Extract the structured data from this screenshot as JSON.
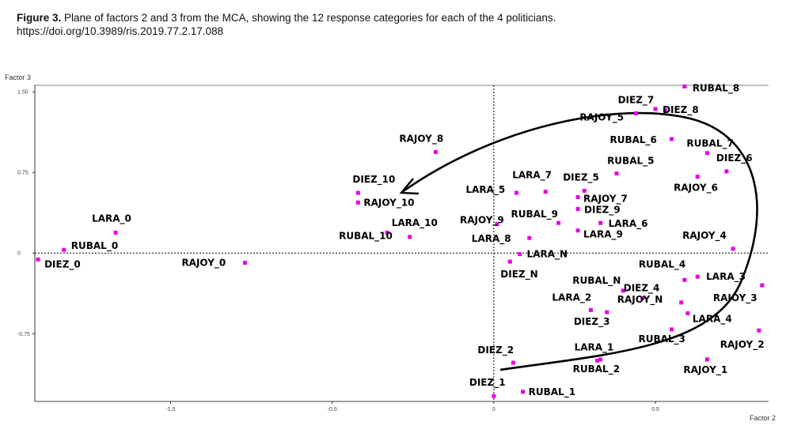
{
  "caption": {
    "figure_label": "Figure 3.",
    "text": "Plane of factors 2 and 3 from the MCA, showing the 12 response categories for each of the 4 politicians.",
    "doi": "https://doi.org/10.3989/ris.2019.77.2.17.088"
  },
  "colors": {
    "point": "#e600e6",
    "axis": "#000000",
    "arrow": "#000000"
  },
  "chart_data": {
    "type": "scatter",
    "title": "",
    "xlabel": "Factor 2",
    "ylabel": "Factor 3",
    "xlim": [
      -1.42,
      0.85
    ],
    "ylim": [
      -1.38,
      1.56
    ],
    "x_ticks": [
      {
        "value": -1.0,
        "label": "-1.0"
      },
      {
        "value": -0.5,
        "label": "-0.5"
      },
      {
        "value": 0,
        "label": "0"
      },
      {
        "value": 0.5,
        "label": "0.5"
      }
    ],
    "y_ticks": [
      {
        "value": 1.5,
        "label": "1.50"
      },
      {
        "value": 0.75,
        "label": "0.75"
      },
      {
        "value": 0,
        "label": "0"
      },
      {
        "value": -0.75,
        "label": "-0.75"
      }
    ],
    "reference_lines": "dotted lines at x = 0 and y = 0",
    "points": [
      {
        "label": "LARA_0",
        "x": -1.17,
        "y": 0.19
      },
      {
        "label": "RUBAL_0",
        "x": -1.33,
        "y": 0.03
      },
      {
        "label": "DIEZ_0",
        "x": -1.41,
        "y": -0.06
      },
      {
        "label": "RAJOY_0",
        "x": -0.77,
        "y": -0.09
      },
      {
        "label": "RAJOY_8",
        "x": -0.18,
        "y": 0.94
      },
      {
        "label": "DIEZ_10",
        "x": -0.42,
        "y": 0.56
      },
      {
        "label": "RAJOY_10",
        "x": -0.42,
        "y": 0.47
      },
      {
        "label": "LARA_10",
        "x": -0.26,
        "y": 0.15
      },
      {
        "label": "RUBAL_10",
        "x": -0.33,
        "y": 0.19
      },
      {
        "label": "RAJOY_9",
        "x": 0.01,
        "y": 0.27
      },
      {
        "label": "LARA_5",
        "x": 0.07,
        "y": 0.56
      },
      {
        "label": "LARA_7",
        "x": 0.16,
        "y": 0.57
      },
      {
        "label": "DIEZ_5",
        "x": 0.28,
        "y": 0.58
      },
      {
        "label": "RAJOY_7",
        "x": 0.26,
        "y": 0.52
      },
      {
        "label": "RUBAL_9",
        "x": 0.2,
        "y": 0.28
      },
      {
        "label": "DIEZ_9",
        "x": 0.26,
        "y": 0.41
      },
      {
        "label": "LARA_6",
        "x": 0.33,
        "y": 0.28
      },
      {
        "label": "LARA_8",
        "x": 0.11,
        "y": 0.14
      },
      {
        "label": "LARA_9",
        "x": 0.26,
        "y": 0.21
      },
      {
        "label": "LARA_N",
        "x": 0.08,
        "y": -0.01
      },
      {
        "label": "DIEZ_N",
        "x": 0.05,
        "y": -0.08
      },
      {
        "label": "DIEZ_7",
        "x": 0.44,
        "y": 1.3
      },
      {
        "label": "DIEZ_8",
        "x": 0.5,
        "y": 1.34
      },
      {
        "label": "RAJOY_5",
        "x": 0.53,
        "y": 1.33
      },
      {
        "label": "RUBAL_8",
        "x": 0.59,
        "y": 1.55
      },
      {
        "label": "RUBAL_6",
        "x": 0.55,
        "y": 1.06
      },
      {
        "label": "RUBAL_7",
        "x": 0.66,
        "y": 0.93
      },
      {
        "label": "RUBAL_5",
        "x": 0.38,
        "y": 0.74
      },
      {
        "label": "DIEZ_6",
        "x": 0.72,
        "y": 0.76
      },
      {
        "label": "RAJOY_6",
        "x": 0.63,
        "y": 0.71
      },
      {
        "label": "RAJOY_4",
        "x": 0.74,
        "y": 0.04
      },
      {
        "label": "RUBAL_4",
        "x": 0.59,
        "y": -0.25
      },
      {
        "label": "LARA_3",
        "x": 0.63,
        "y": -0.22
      },
      {
        "label": "RAJOY_3",
        "x": 0.83,
        "y": -0.3
      },
      {
        "label": "RUBAL_N",
        "x": 0.4,
        "y": -0.35
      },
      {
        "label": "DIEZ_4",
        "x": 0.46,
        "y": -0.42
      },
      {
        "label": "LARA_2",
        "x": 0.3,
        "y": -0.53
      },
      {
        "label": "RAJOY_N",
        "x": 0.58,
        "y": -0.46
      },
      {
        "label": "DIEZ_3",
        "x": 0.35,
        "y": -0.55
      },
      {
        "label": "LARA_4",
        "x": 0.6,
        "y": -0.56
      },
      {
        "label": "RUBAL_3",
        "x": 0.55,
        "y": -0.71
      },
      {
        "label": "RAJOY_2",
        "x": 0.82,
        "y": -0.72
      },
      {
        "label": "DIEZ_2",
        "x": 0.06,
        "y": -1.02
      },
      {
        "label": "LARA_1",
        "x": 0.32,
        "y": -1.0
      },
      {
        "label": "RUBAL_2",
        "x": 0.33,
        "y": -0.99
      },
      {
        "label": "RAJOY_1",
        "x": 0.66,
        "y": -0.99
      },
      {
        "label": "DIEZ_1",
        "x": 0.0,
        "y": -1.33
      },
      {
        "label": "RUBAL_1",
        "x": 0.09,
        "y": -1.29
      }
    ],
    "annotation": "Hand-drawn curved arrow looping from the lower middle up around the right side and ending with an arrowhead pointing left near DIEZ_10 / RAJOY_10"
  }
}
